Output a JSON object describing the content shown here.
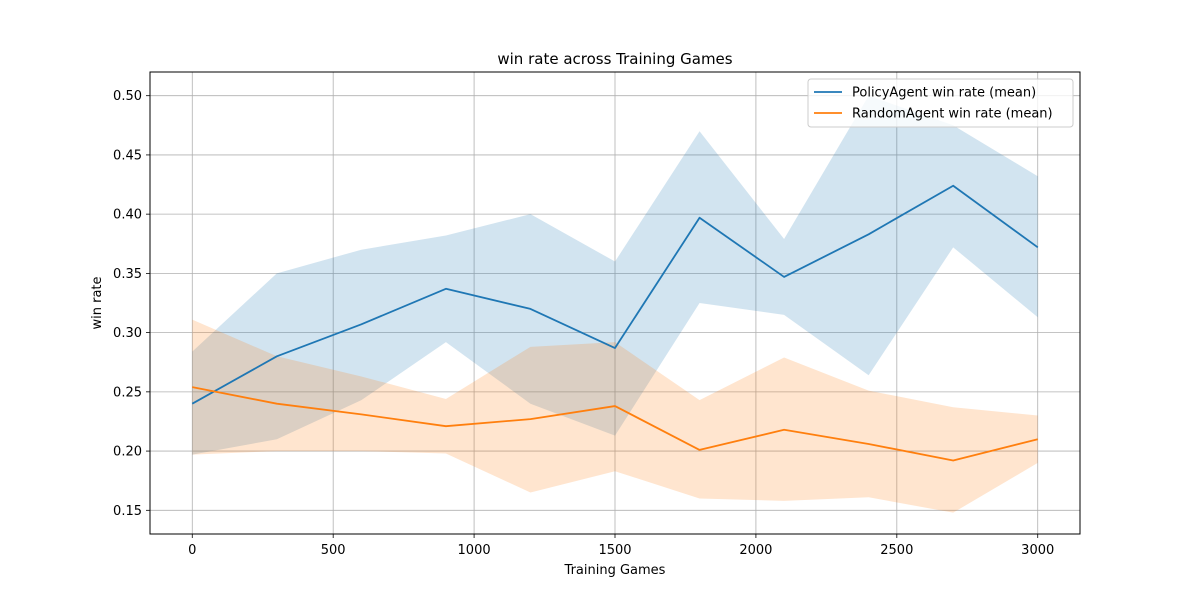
{
  "chart_data": {
    "type": "line",
    "title": "win rate across Training Games",
    "xlabel": "Training Games",
    "ylabel": "win rate",
    "xlim": [
      -150,
      3150
    ],
    "ylim": [
      0.13,
      0.52
    ],
    "xticks": [
      0,
      500,
      1000,
      1500,
      2000,
      2500,
      3000
    ],
    "yticks": [
      0.15,
      0.2,
      0.25,
      0.3,
      0.35,
      0.4,
      0.45,
      0.5
    ],
    "ytick_labels": [
      "0.15",
      "0.20",
      "0.25",
      "0.30",
      "0.35",
      "0.40",
      "0.45",
      "0.50"
    ],
    "grid": true,
    "legend_position": "upper right",
    "x": [
      0,
      300,
      600,
      900,
      1200,
      1500,
      1800,
      2100,
      2400,
      2700,
      3000
    ],
    "series": [
      {
        "name": "PolicyAgent win rate (mean)",
        "color": "#1f77b4",
        "values": [
          0.24,
          0.28,
          0.307,
          0.337,
          0.32,
          0.287,
          0.397,
          0.347,
          0.383,
          0.424,
          0.372
        ],
        "lower": [
          0.197,
          0.21,
          0.243,
          0.292,
          0.24,
          0.213,
          0.325,
          0.315,
          0.264,
          0.372,
          0.313
        ],
        "upper": [
          0.284,
          0.35,
          0.37,
          0.382,
          0.4,
          0.36,
          0.47,
          0.379,
          0.5,
          0.475,
          0.432
        ]
      },
      {
        "name": "RandomAgent win rate (mean)",
        "color": "#ff7f0e",
        "values": [
          0.254,
          0.24,
          0.231,
          0.221,
          0.227,
          0.238,
          0.201,
          0.218,
          0.206,
          0.192,
          0.21
        ],
        "lower": [
          0.197,
          0.2,
          0.2,
          0.198,
          0.165,
          0.183,
          0.16,
          0.158,
          0.161,
          0.148,
          0.19
        ],
        "upper": [
          0.311,
          0.28,
          0.263,
          0.244,
          0.288,
          0.292,
          0.243,
          0.279,
          0.251,
          0.237,
          0.23
        ]
      }
    ]
  }
}
